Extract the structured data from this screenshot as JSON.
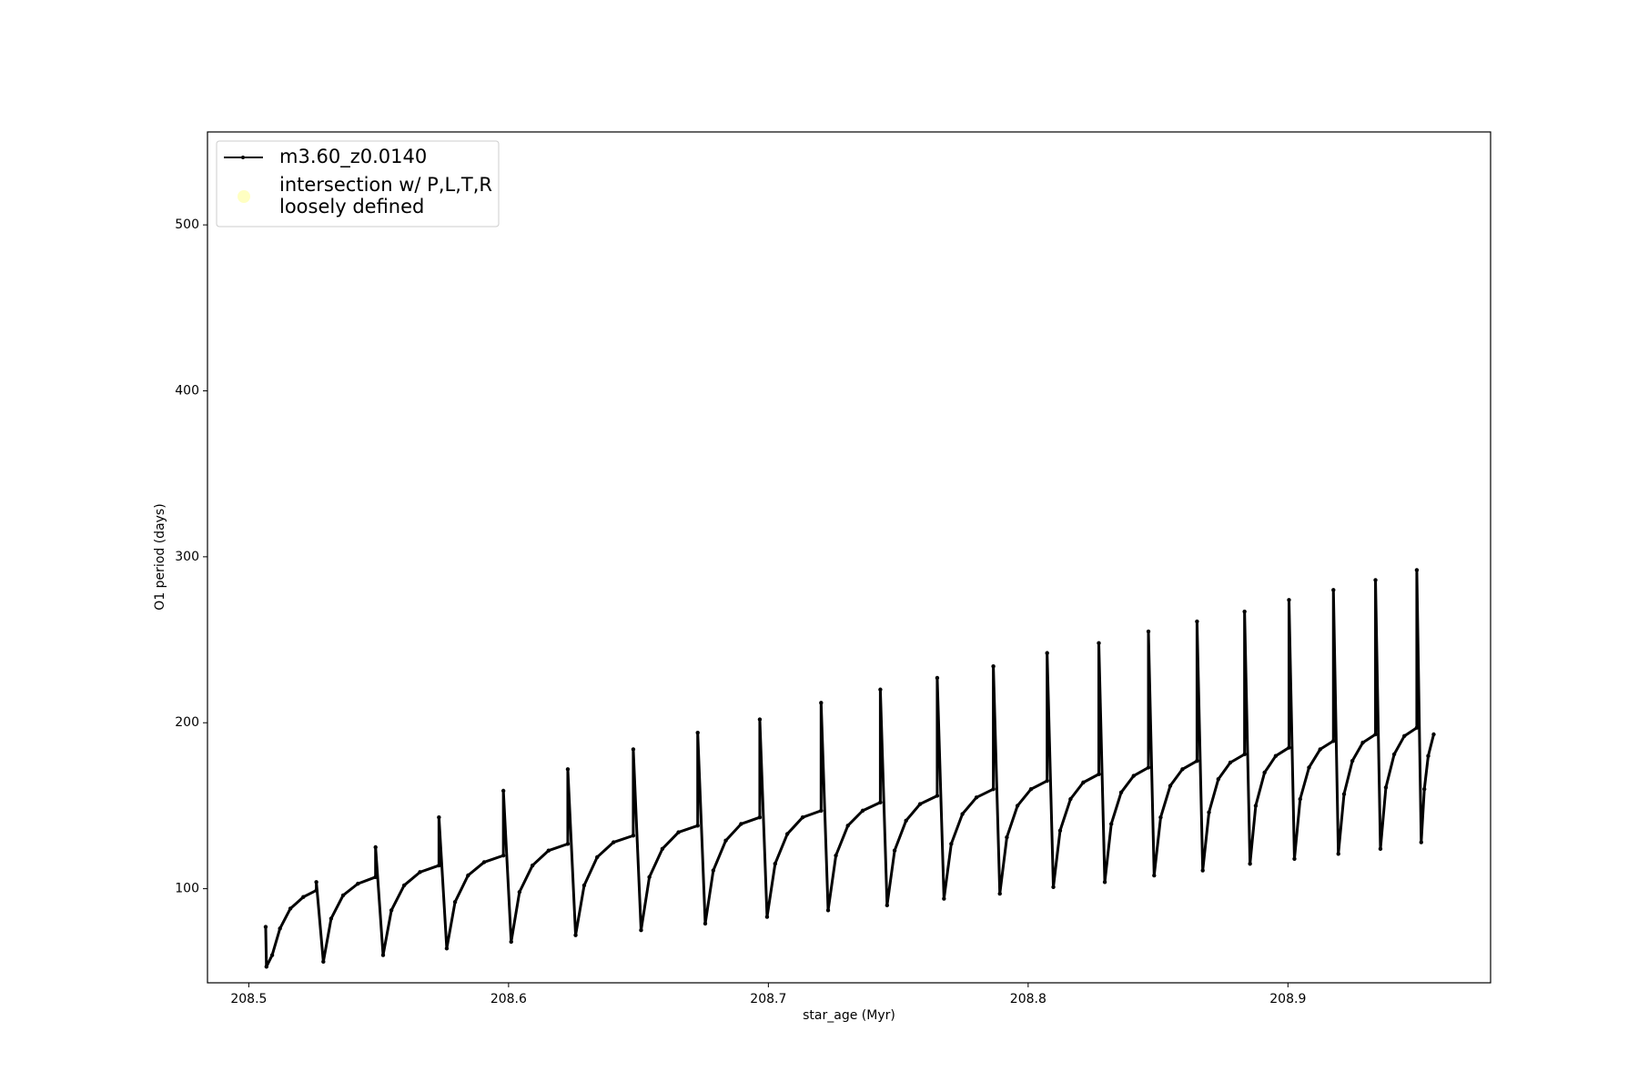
{
  "chart_data": {
    "type": "line",
    "xlabel": "star_age (Myr)",
    "ylabel": "O1 period (days)",
    "xlim": [
      208.4841,
      208.978
    ],
    "ylim": [
      43.3,
      556
    ],
    "xticks": [
      208.5,
      208.6,
      208.7,
      208.8,
      208.9
    ],
    "yticks": [
      100,
      200,
      300,
      400,
      500
    ],
    "legend": "upper left",
    "series": [
      {
        "name": "m3.60_z0.0140",
        "color": "#000000",
        "x": [
          208.5065,
          208.5068,
          208.509,
          208.512,
          208.516,
          208.521,
          208.526,
          208.526,
          208.5287,
          208.5317,
          208.5363,
          208.542,
          208.5488,
          208.5488,
          208.5517,
          208.5549,
          208.5598,
          208.5659,
          208.5732,
          208.5732,
          208.5762,
          208.5794,
          208.5844,
          208.5906,
          208.598,
          208.598,
          208.601,
          208.6042,
          208.6092,
          208.6154,
          208.6228,
          208.6228,
          208.6258,
          208.6291,
          208.6341,
          208.6404,
          208.648,
          208.648,
          208.651,
          208.6542,
          208.6592,
          208.6654,
          208.6728,
          208.6728,
          208.6757,
          208.6788,
          208.6836,
          208.6895,
          208.6967,
          208.6967,
          208.6995,
          208.7026,
          208.7073,
          208.7132,
          208.7203,
          208.7203,
          208.723,
          208.726,
          208.7306,
          208.7363,
          208.7431,
          208.7431,
          208.7457,
          208.7486,
          208.753,
          208.7584,
          208.765,
          208.765,
          208.7676,
          208.7704,
          208.7747,
          208.7801,
          208.7866,
          208.7866,
          208.7891,
          208.7918,
          208.7959,
          208.8011,
          208.8073,
          208.8073,
          208.8097,
          208.8123,
          208.8163,
          208.8212,
          208.8272,
          208.8272,
          208.8295,
          208.832,
          208.8358,
          208.8406,
          208.8463,
          208.8463,
          208.8485,
          208.851,
          208.8547,
          208.8594,
          208.865,
          208.865,
          208.8672,
          208.8696,
          208.8732,
          208.8778,
          208.8833,
          208.8833,
          208.8854,
          208.8876,
          208.891,
          208.8953,
          208.9004,
          208.9004,
          208.9025,
          208.9047,
          208.9081,
          208.9124,
          208.9175,
          208.9175,
          208.9194,
          208.9216,
          208.9248,
          208.9288,
          208.9337,
          208.9337,
          208.9356,
          208.9377,
          208.9409,
          208.9448,
          208.9496,
          208.9496,
          208.9513,
          208.9525,
          208.954,
          208.9561
        ],
        "values": [
          77,
          53,
          60,
          76,
          88,
          95,
          99,
          104,
          56,
          82,
          96,
          103,
          107,
          125,
          60,
          87,
          102,
          110,
          114,
          143,
          64,
          92,
          108,
          116,
          120,
          159,
          68,
          98,
          114,
          123,
          127,
          172,
          72,
          102,
          119,
          128,
          132,
          184,
          75,
          107,
          124,
          134,
          138,
          194,
          79,
          111,
          129,
          139,
          143,
          202,
          83,
          115,
          133,
          143,
          147,
          212,
          87,
          120,
          138,
          147,
          152,
          220,
          90,
          123,
          141,
          151,
          156,
          227,
          94,
          127,
          145,
          155,
          160,
          234,
          97,
          131,
          150,
          160,
          165,
          242,
          101,
          135,
          154,
          164,
          169,
          248,
          104,
          139,
          158,
          168,
          173,
          255,
          108,
          143,
          162,
          172,
          177,
          261,
          111,
          146,
          166,
          176,
          181,
          267,
          115,
          150,
          170,
          180,
          185,
          274,
          118,
          154,
          173,
          184,
          189,
          280,
          121,
          157,
          177,
          188,
          193,
          286,
          124,
          161,
          181,
          192,
          197,
          292,
          128,
          160,
          180,
          193
        ]
      },
      {
        "name": "intersection w/ P,L,T,R\nloosely defined",
        "color": "#ffffb3",
        "x": [],
        "values": []
      }
    ]
  }
}
